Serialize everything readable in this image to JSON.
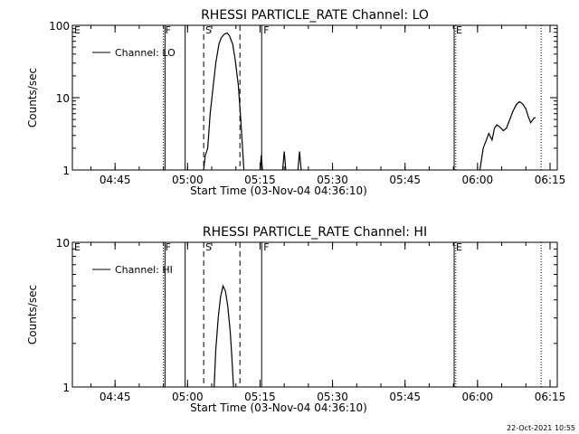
{
  "chart_data": [
    {
      "type": "line",
      "title": "RHESSI PARTICLE_RATE Channel: LO",
      "xlabel": "Start Time (03-Nov-04 04:36:10)",
      "ylabel": "Counts/sec",
      "yscale": "log",
      "ylim": [
        1,
        100
      ],
      "ytick_labels": [
        "1",
        "10",
        "100"
      ],
      "ytick_values": [
        1,
        10,
        100
      ],
      "xlim": [
        "04:36:10",
        "06:16:30"
      ],
      "xtick_labels": [
        "04:45",
        "05:00",
        "05:15",
        "05:30",
        "05:45",
        "06:00",
        "06:15"
      ],
      "grid": false,
      "legend": {
        "placement": "top-left",
        "entries": [
          "Channel: LO"
        ]
      },
      "series": [
        {
          "name": "Channel: LO",
          "segments": [
            [
              [
                "05:03:20",
                1.0
              ],
              [
                "05:03:40",
                1.6
              ],
              [
                "05:04:10",
                2.0
              ],
              [
                "05:04:40",
                6.0
              ],
              [
                "05:05:20",
                15.0
              ],
              [
                "05:05:50",
                30.0
              ],
              [
                "05:06:30",
                55.0
              ],
              [
                "05:07:00",
                68.0
              ],
              [
                "05:07:40",
                76.0
              ],
              [
                "05:08:10",
                78.0
              ],
              [
                "05:08:40",
                72.0
              ],
              [
                "05:09:20",
                55.0
              ],
              [
                "05:09:50",
                34.0
              ],
              [
                "05:10:30",
                15.0
              ],
              [
                "05:11:00",
                5.0
              ],
              [
                "05:11:40",
                1.0
              ]
            ],
            [
              [
                "05:15:00",
                1.0
              ],
              [
                "05:15:15",
                1.6
              ],
              [
                "05:15:30",
                1.0
              ]
            ],
            [
              [
                "05:19:40",
                1.0
              ],
              [
                "05:20:00",
                1.8
              ],
              [
                "05:20:20",
                1.0
              ]
            ],
            [
              [
                "05:22:50",
                1.0
              ],
              [
                "05:23:10",
                1.8
              ],
              [
                "05:23:30",
                1.0
              ]
            ],
            [
              [
                "06:00:30",
                1.0
              ],
              [
                "06:01:10",
                2.0
              ],
              [
                "06:01:50",
                2.6
              ],
              [
                "06:02:20",
                3.2
              ],
              [
                "06:03:00",
                2.6
              ],
              [
                "06:03:30",
                3.8
              ],
              [
                "06:04:00",
                4.2
              ],
              [
                "06:04:40",
                3.9
              ],
              [
                "06:05:20",
                3.5
              ],
              [
                "06:06:00",
                3.8
              ],
              [
                "06:06:40",
                5.0
              ],
              [
                "06:07:20",
                6.5
              ],
              [
                "06:08:00",
                8.0
              ],
              [
                "06:08:40",
                8.8
              ],
              [
                "06:09:20",
                8.2
              ],
              [
                "06:10:00",
                7.0
              ],
              [
                "06:10:30",
                5.5
              ],
              [
                "06:11:00",
                4.5
              ],
              [
                "06:11:40",
                5.2
              ],
              [
                "06:12:00",
                5.3
              ]
            ]
          ]
        }
      ],
      "markers": [
        {
          "time": "04:36:10",
          "label": "E",
          "style": "dotted"
        },
        {
          "time": "04:55:00",
          "label": "F",
          "style": "dotted"
        },
        {
          "time": "04:55:20",
          "label": "",
          "style": "solid"
        },
        {
          "time": "04:59:30",
          "label": "",
          "style": "solid"
        },
        {
          "time": "05:03:20",
          "label": "S",
          "style": "dashed"
        },
        {
          "time": "05:10:50",
          "label": "",
          "style": "dashed"
        },
        {
          "time": "05:15:20",
          "label": "F",
          "style": "solid"
        },
        {
          "time": "05:55:10",
          "label": "E",
          "style": "solid"
        },
        {
          "time": "05:55:30",
          "label": "",
          "style": "dotted"
        },
        {
          "time": "06:13:10",
          "label": "",
          "style": "dotted"
        }
      ]
    },
    {
      "type": "line",
      "title": "RHESSI PARTICLE_RATE Channel: HI",
      "xlabel": "Start Time (03-Nov-04 04:36:10)",
      "ylabel": "Counts/sec",
      "yscale": "log",
      "ylim": [
        1,
        10
      ],
      "ytick_labels": [
        "1",
        "10"
      ],
      "ytick_values": [
        1,
        10
      ],
      "xlim": [
        "04:36:10",
        "06:16:30"
      ],
      "xtick_labels": [
        "04:45",
        "05:00",
        "05:15",
        "05:30",
        "05:45",
        "06:00",
        "06:15"
      ],
      "grid": false,
      "legend": {
        "placement": "top-left",
        "entries": [
          "Channel: HI"
        ]
      },
      "series": [
        {
          "name": "Channel: HI",
          "segments": [
            [
              [
                "05:05:30",
                1.0
              ],
              [
                "05:05:50",
                1.8
              ],
              [
                "05:06:20",
                3.0
              ],
              [
                "05:06:50",
                4.2
              ],
              [
                "05:07:20",
                5.0
              ],
              [
                "05:07:50",
                4.6
              ],
              [
                "05:08:20",
                3.6
              ],
              [
                "05:08:50",
                2.4
              ],
              [
                "05:09:10",
                1.6
              ],
              [
                "05:09:30",
                1.0
              ]
            ]
          ]
        }
      ],
      "markers": [
        {
          "time": "04:36:10",
          "label": "E",
          "style": "dotted"
        },
        {
          "time": "04:55:00",
          "label": "F",
          "style": "dotted"
        },
        {
          "time": "04:55:20",
          "label": "",
          "style": "solid"
        },
        {
          "time": "04:59:30",
          "label": "",
          "style": "solid"
        },
        {
          "time": "05:03:20",
          "label": "S",
          "style": "dashed"
        },
        {
          "time": "05:10:50",
          "label": "",
          "style": "dashed"
        },
        {
          "time": "05:15:20",
          "label": "F",
          "style": "solid"
        },
        {
          "time": "05:55:10",
          "label": "E",
          "style": "solid"
        },
        {
          "time": "05:55:30",
          "label": "",
          "style": "dotted"
        },
        {
          "time": "06:13:10",
          "label": "",
          "style": "dotted"
        }
      ]
    }
  ],
  "footer": {
    "stamp": "22-Oct-2021 10:55"
  }
}
